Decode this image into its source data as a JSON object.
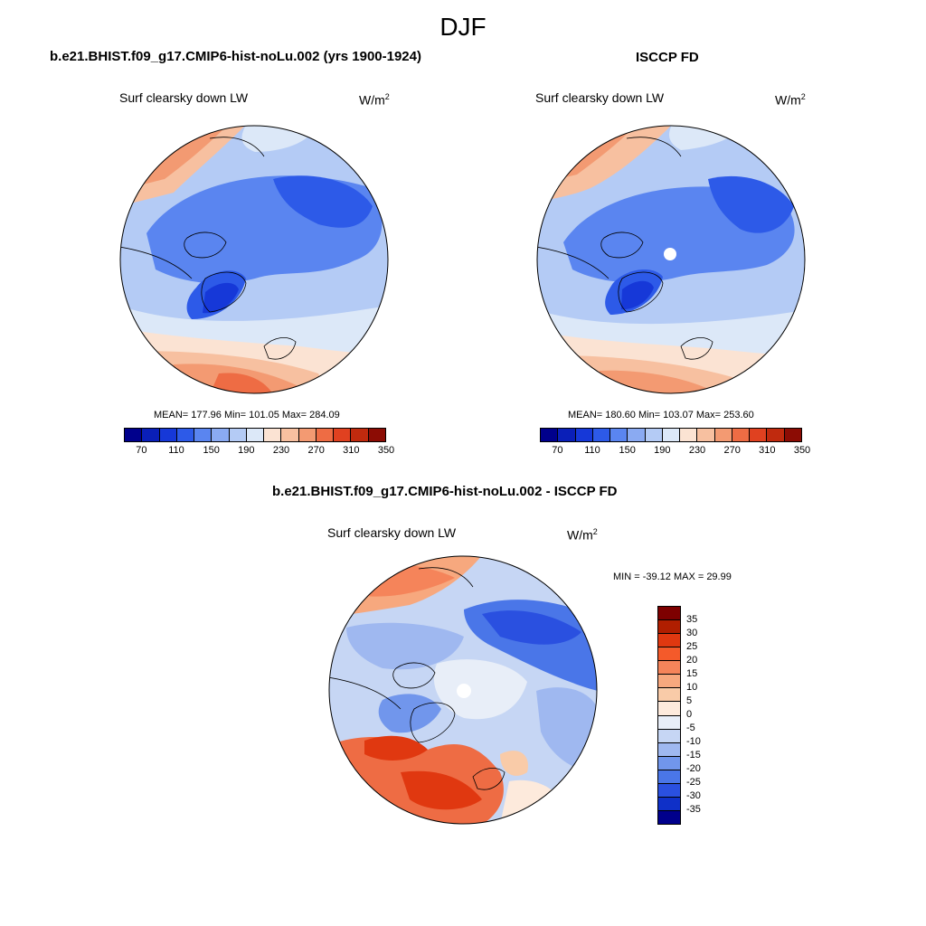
{
  "figure": {
    "title": "DJF"
  },
  "panels": {
    "model": {
      "title": "b.e21.BHIST.f09_g17.CMIP6-hist-noLu.002 (yrs 1900-1924)",
      "var_label": "Surf clearsky down LW",
      "units": "W/m",
      "units_exp": "2",
      "stats": "MEAN= 177.96  Min= 101.05  Max= 284.09"
    },
    "obs": {
      "title": "ISCCP FD",
      "var_label": "Surf clearsky down LW",
      "units": "W/m",
      "units_exp": "2",
      "stats": "MEAN= 180.60  Min= 103.07  Max= 253.60"
    },
    "diff": {
      "title": "b.e21.BHIST.f09_g17.CMIP6-hist-noLu.002 - ISCCP FD",
      "var_label": "Surf clearsky down LW",
      "units": "W/m",
      "units_exp": "2",
      "stats": "MIN = -39.12 MAX =  29.99"
    }
  },
  "colorbars": {
    "abs": {
      "tick_labels": [
        "70",
        "110",
        "150",
        "190",
        "230",
        "270",
        "310",
        "350"
      ],
      "colors": [
        "#00008c",
        "#0a1fb8",
        "#1638d8",
        "#2d5ae8",
        "#5a85f0",
        "#8aaaf2",
        "#b4cbf5",
        "#dce8f8",
        "#fbe3d3",
        "#f7c0a0",
        "#f39a72",
        "#ee6c44",
        "#e04120",
        "#c02a0e",
        "#8c0c04"
      ]
    },
    "diff": {
      "tick_labels": [
        "35",
        "30",
        "25",
        "20",
        "15",
        "10",
        "5",
        "0",
        "-5",
        "-10",
        "-15",
        "-20",
        "-25",
        "-30",
        "-35"
      ],
      "colors": [
        "#7d0000",
        "#b01e00",
        "#e03810",
        "#f45a2a",
        "#f5845a",
        "#f7a87e",
        "#f9cba8",
        "#fdeadc",
        "#e8eef8",
        "#c6d6f4",
        "#9fb8f0",
        "#7196ec",
        "#4a76e8",
        "#2a50e0",
        "#0f30c8",
        "#00008c"
      ]
    }
  },
  "chart_data": [
    {
      "type": "heatmap",
      "title": "b.e21.BHIST.f09_g17.CMIP6-hist-noLu.002 (yrs 1900-1924)",
      "variable": "Surf clearsky down LW",
      "units": "W/m2",
      "projection": "north-polar-stereographic",
      "mean": 177.96,
      "min": 101.05,
      "max": 284.09,
      "contour_levels": [
        70,
        90,
        110,
        130,
        150,
        170,
        190,
        210,
        230,
        250,
        270,
        290,
        310,
        330,
        350
      ]
    },
    {
      "type": "heatmap",
      "title": "ISCCP FD",
      "variable": "Surf clearsky down LW",
      "units": "W/m2",
      "projection": "north-polar-stereographic",
      "mean": 180.6,
      "min": 103.07,
      "max": 253.6,
      "contour_levels": [
        70,
        90,
        110,
        130,
        150,
        170,
        190,
        210,
        230,
        250,
        270,
        290,
        310,
        330,
        350
      ]
    },
    {
      "type": "heatmap",
      "title": "b.e21.BHIST.f09_g17.CMIP6-hist-noLu.002 - ISCCP FD",
      "variable": "Surf clearsky down LW",
      "units": "W/m2",
      "projection": "north-polar-stereographic",
      "min": -39.12,
      "max": 29.99,
      "contour_levels": [
        -35,
        -30,
        -25,
        -20,
        -15,
        -10,
        -5,
        0,
        5,
        10,
        15,
        20,
        25,
        30,
        35
      ]
    }
  ]
}
